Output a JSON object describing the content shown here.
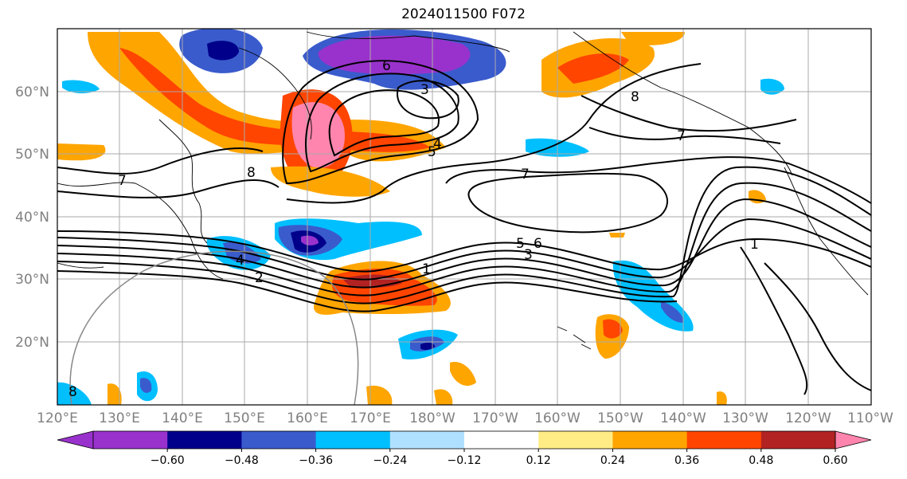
{
  "title": "2024011500 F072",
  "map": {
    "grid": true,
    "lat_labels": [
      "60°N",
      "50°N",
      "40°N",
      "30°N",
      "20°N"
    ],
    "lon_labels": [
      "120°E",
      "130°E",
      "140°E",
      "150°E",
      "160°E",
      "170°E",
      "180°W",
      "170°W",
      "160°W",
      "150°W",
      "140°W",
      "130°W",
      "120°W",
      "110°W"
    ],
    "contour_labels": [
      "7",
      "8",
      "3",
      "4",
      "5",
      "6",
      "7",
      "7",
      "5",
      "6",
      "3",
      "1",
      "1",
      "2",
      "4",
      "8",
      "8"
    ]
  },
  "colorbar": {
    "ticks": [
      "−0.60",
      "−0.48",
      "−0.36",
      "−0.24",
      "−0.12",
      "0.12",
      "0.24",
      "0.36",
      "0.48",
      "0.60"
    ],
    "colors": [
      "#9932CC",
      "#00008B",
      "#3A5BCC",
      "#00BFFF",
      "#B0E0FF",
      "#FFFFFF",
      "#FFEC85",
      "#FFA500",
      "#FF4500",
      "#B22222",
      "#FF85AE"
    ]
  }
}
